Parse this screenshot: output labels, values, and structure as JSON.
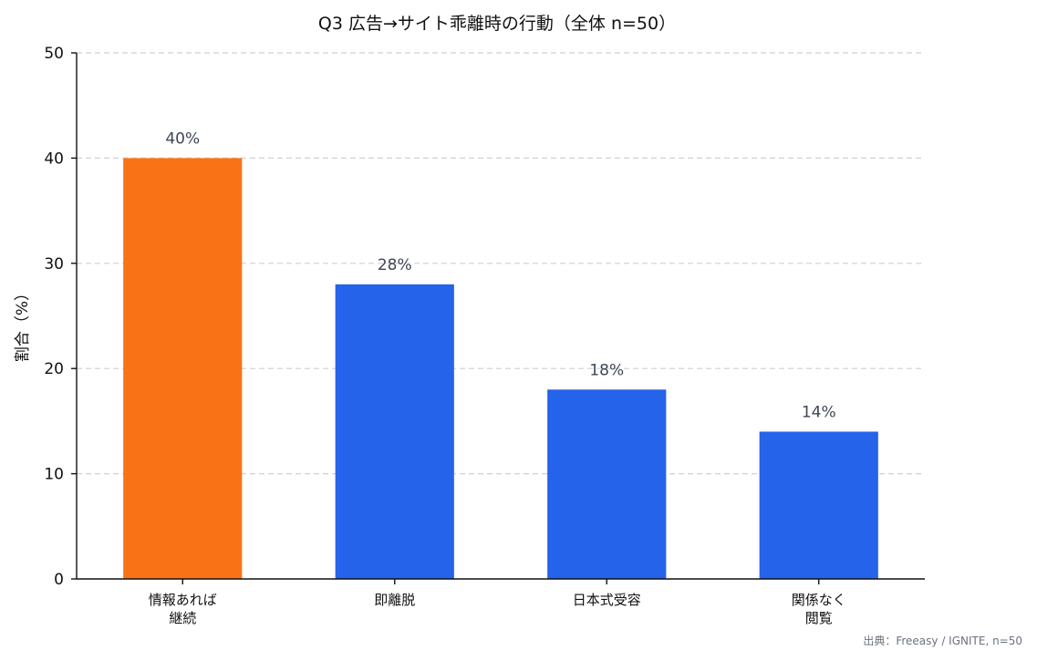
{
  "chart_data": {
    "type": "bar",
    "title": "Q3 広告→サイト乖離時の行動（全体 n=50）",
    "ylabel": "割合（%）",
    "xlabel": "",
    "categories": [
      [
        "情報あれば",
        "継続"
      ],
      [
        "即離脱"
      ],
      [
        "日本式受容"
      ],
      [
        "関係なく",
        "閲覧"
      ]
    ],
    "values": [
      40,
      28,
      18,
      14
    ],
    "value_labels": [
      "40%",
      "28%",
      "18%",
      "14%"
    ],
    "colors": [
      "#f97316",
      "#2563eb",
      "#2563eb",
      "#2563eb"
    ],
    "ylim": [
      0,
      50
    ],
    "yticks": [
      0,
      10,
      20,
      30,
      40,
      50
    ],
    "grid": true,
    "source": "出典：Freeasy / IGNITE, n=50"
  }
}
